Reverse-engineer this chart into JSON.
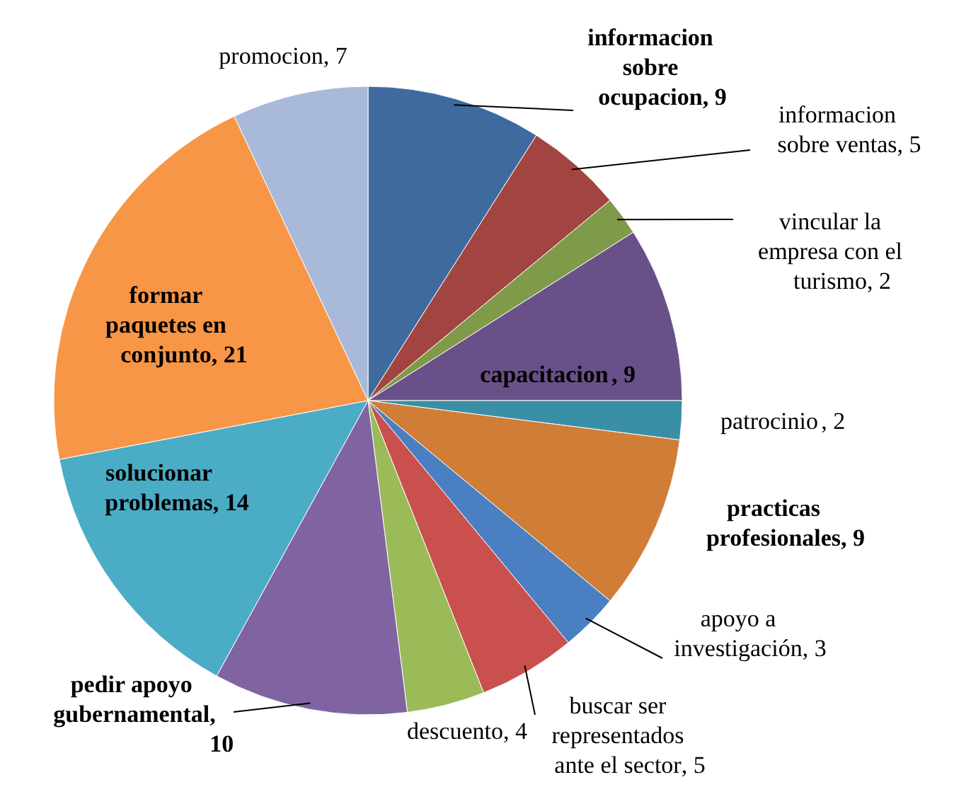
{
  "chart_data": {
    "type": "pie",
    "categories": [
      "informacion sobre ocupacion",
      "informacion sobre ventas",
      "vincular la empresa con el turismo",
      "capacitacion ",
      "patrocinio ",
      "practicas profesionales",
      "apoyo a investigación",
      "buscar ser representados ante el sector",
      "descuento",
      "pedir apoyo gubernamental",
      "solucionar problemas",
      "formar paquetes en conjunto",
      "promocion"
    ],
    "values": [
      9,
      5,
      2,
      9,
      2,
      9,
      3,
      5,
      4,
      10,
      14,
      21,
      7
    ],
    "value_labels": [
      ", 9",
      ", 5",
      ", 2",
      ", 9",
      ", 2",
      ", 9",
      ", 3",
      ", 5",
      ", 4",
      ", 10",
      ", 14",
      ", 21",
      ", 7"
    ],
    "colors": [
      "#3f6a9e",
      "#a24441",
      "#7f9b49",
      "#6a5088",
      "#3a8fa6",
      "#cf7d37",
      "#4a80c2",
      "#c9504d",
      "#9bbb59",
      "#8064a2",
      "#4bacc6",
      "#f79646",
      "#a9b9d9"
    ]
  }
}
